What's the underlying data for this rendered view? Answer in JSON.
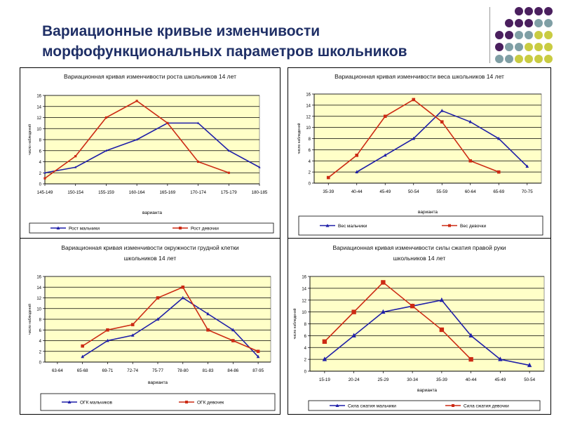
{
  "header": {
    "title_line1": "Вариационные кривые изменчивости",
    "title_line2": "морфофункциональных параметров школьников"
  },
  "colors": {
    "title": "#1f2f66",
    "plot_bg": "#ffffc8",
    "boys": "#1f1fa8",
    "girls": "#cc2a14",
    "grid": "#000000",
    "dot_purple": "#4a1f5e",
    "dot_teal": "#7f9fa5",
    "dot_olive": "#c9cc42"
  },
  "decor": {
    "dot_rows": [
      [
        "dot_purple",
        "dot_purple",
        "dot_purple",
        "dot_purple"
      ],
      [
        "dot_purple",
        "dot_purple",
        "dot_purple",
        "dot_teal",
        "dot_teal"
      ],
      [
        "dot_purple",
        "dot_purple",
        "dot_teal",
        "dot_teal",
        "dot_olive",
        "dot_olive"
      ],
      [
        "dot_purple",
        "dot_teal",
        "dot_teal",
        "dot_olive",
        "dot_olive",
        "dot_olive"
      ],
      [
        "dot_teal",
        "dot_teal",
        "dot_olive",
        "dot_olive",
        "dot_olive",
        "dot_olive"
      ]
    ]
  },
  "chart_data": [
    {
      "type": "line",
      "title_lines": [
        "Вариационная кривая изменчивости роста школьников 14 лет"
      ],
      "xlabel": "варианта",
      "ylabel": "число наблюдений",
      "categories": [
        "145-149",
        "150-154",
        "155-159",
        "160-164",
        "165-169",
        "170-174",
        "175-179",
        "180-185"
      ],
      "ylim": [
        0,
        16
      ],
      "yticks": [
        0,
        2,
        4,
        6,
        8,
        10,
        12,
        14,
        16
      ],
      "grid": true,
      "legend_position": "bottom",
      "marker_size": "small",
      "x_mode": "edge",
      "series": [
        {
          "name": "Рост мальчики",
          "color_key": "boys",
          "x": [
            0,
            1,
            2,
            3,
            4,
            5,
            6,
            7
          ],
          "values": [
            2,
            3,
            6,
            8,
            11,
            11,
            6,
            3
          ]
        },
        {
          "name": "Рост девочки",
          "color_key": "girls",
          "x": [
            0,
            1,
            2,
            3,
            4,
            5,
            6
          ],
          "values": [
            1,
            5,
            12,
            15,
            11,
            4,
            2
          ]
        }
      ]
    },
    {
      "type": "line",
      "title_lines": [
        "Вариационная кривая изменчивости веса школьников 14 лет"
      ],
      "xlabel": "варианта",
      "ylabel": "число наблюдений",
      "categories": [
        "35-39",
        "40-44",
        "45-49",
        "50-54",
        "55-59",
        "60-64",
        "65-69",
        "70-75"
      ],
      "ylim": [
        0,
        16
      ],
      "yticks": [
        0,
        2,
        4,
        6,
        8,
        10,
        12,
        14,
        16
      ],
      "grid": true,
      "legend_position": "bottom",
      "marker_size": "medium",
      "x_mode": "center",
      "series": [
        {
          "name": "Вес мальчики",
          "color_key": "boys",
          "x": [
            1,
            2,
            3,
            4,
            5,
            6,
            7
          ],
          "values": [
            2,
            5,
            8,
            13,
            11,
            8,
            3
          ]
        },
        {
          "name": "Вес девочки",
          "color_key": "girls",
          "x": [
            0,
            1,
            2,
            3,
            4,
            5,
            6
          ],
          "values": [
            1,
            5,
            12,
            15,
            11,
            4,
            2
          ]
        }
      ]
    },
    {
      "type": "line",
      "title_lines": [
        "Вариационная кривая изменчивости окружности грудной клетки",
        "школьников 14 лет"
      ],
      "xlabel": "варианта",
      "ylabel": "число наблюдений",
      "categories": [
        "63-64",
        "65-68",
        "69-71",
        "72-74",
        "75-77",
        "78-80",
        "81-83",
        "84-86",
        "87-95"
      ],
      "ylim": [
        0,
        16
      ],
      "yticks": [
        0,
        2,
        4,
        6,
        8,
        10,
        12,
        14,
        16
      ],
      "grid": true,
      "legend_position": "bottom",
      "marker_size": "medium",
      "x_mode": "center",
      "series": [
        {
          "name": "ОГК мальчиков",
          "color_key": "boys",
          "x": [
            1,
            2,
            3,
            4,
            5,
            6,
            7,
            8
          ],
          "values": [
            1,
            4,
            5,
            8,
            12,
            9,
            6,
            1
          ]
        },
        {
          "name": "ОГК девочек",
          "color_key": "girls",
          "x": [
            1,
            2,
            3,
            4,
            5,
            6,
            7,
            8
          ],
          "values": [
            3,
            6,
            7,
            12,
            14,
            6,
            4,
            2
          ]
        }
      ]
    },
    {
      "type": "line",
      "title_lines": [
        "Вариационная кривая изменчивости силы сжатия правой руки",
        "школьников 14 лет"
      ],
      "xlabel": "варианта",
      "ylabel": "число наблюдений",
      "categories": [
        "15-19",
        "20-24",
        "25-29",
        "30-34",
        "35-39",
        "40-44",
        "45-49",
        "50-54"
      ],
      "ylim": [
        0,
        16
      ],
      "yticks": [
        0,
        2,
        4,
        6,
        8,
        10,
        12,
        14,
        16
      ],
      "grid": true,
      "legend_position": "bottom",
      "marker_size": "large",
      "x_mode": "center",
      "series": [
        {
          "name": "Сила сжатия мальчики",
          "color_key": "boys",
          "x": [
            0,
            1,
            2,
            3,
            4,
            5,
            6,
            7
          ],
          "values": [
            2,
            6,
            10,
            11,
            12,
            6,
            2,
            1
          ]
        },
        {
          "name": "Сила сжатия девочки",
          "color_key": "girls",
          "x": [
            0,
            1,
            2,
            3,
            4,
            5
          ],
          "values": [
            5,
            10,
            15,
            11,
            7,
            2
          ]
        }
      ]
    }
  ]
}
